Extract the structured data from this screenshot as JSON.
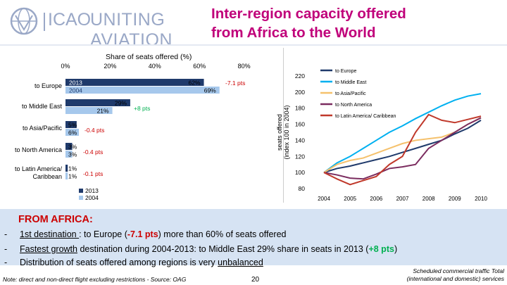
{
  "header": {
    "logo_icao": "ICAO",
    "logo_tagline": "UNITING AVIATION",
    "title": "Inter-region capacity offered from Africa to the World"
  },
  "colors": {
    "title": "#c0007a",
    "bar_2013": "#1f3a6b",
    "bar_2004": "#a6c8ec",
    "to_europe": "#1f3a6b",
    "to_middle_east": "#00b0f0",
    "to_asia_pacific": "#f5c16c",
    "to_north_america": "#7b2c5f",
    "to_latin_america": "#c0392b",
    "positive": "#00b050",
    "negative": "#cc0000"
  },
  "chart_data": [
    {
      "type": "bar",
      "title": "Share of seats offered (%)",
      "orientation": "horizontal",
      "x_ticks": [
        "0%",
        "20%",
        "40%",
        "60%",
        "80%"
      ],
      "xlim": [
        0,
        80
      ],
      "categories": [
        "to Europe",
        "to Middle East",
        "to Asia/Pacific",
        "to North America",
        "to Latin America/ Caribbean"
      ],
      "series": [
        {
          "name": "2013",
          "values": [
            62,
            29,
            5,
            3,
            1
          ],
          "labels": [
            "62%",
            "29%",
            "5%",
            "3%",
            "1%"
          ]
        },
        {
          "name": "2004",
          "values": [
            69,
            21,
            6,
            3,
            1
          ],
          "labels": [
            "69%",
            "21%",
            "6%",
            "3%",
            "1%"
          ]
        }
      ],
      "in_bar_labels": {
        "2013": "2013",
        "2004": "2004"
      },
      "annotations": [
        "-7.1 pts",
        "+8 pts",
        "-0.4 pts",
        "-0.4 pts",
        "-0.1 pts"
      ],
      "legend": "bottom-left"
    },
    {
      "type": "line",
      "ylabel": "seats offered (index 100 in 2004)",
      "x": [
        "2004",
        "2005",
        "2006",
        "2007",
        "2008",
        "2009",
        "2010"
      ],
      "x_values": [
        2004,
        2004.5,
        2005,
        2005.5,
        2006,
        2006.5,
        2007,
        2007.5,
        2008,
        2008.5,
        2009,
        2009.5,
        2010
      ],
      "y_ticks": [
        "80",
        "100",
        "120",
        "140",
        "160",
        "180",
        "200",
        "220"
      ],
      "ylim": [
        80,
        220
      ],
      "series": [
        {
          "name": "to Europe",
          "values": [
            100,
            105,
            108,
            112,
            116,
            120,
            125,
            130,
            135,
            140,
            148,
            155,
            165
          ]
        },
        {
          "name": "to Middle East",
          "values": [
            100,
            112,
            120,
            130,
            140,
            150,
            158,
            167,
            175,
            183,
            190,
            195,
            198
          ]
        },
        {
          "name": "to Asia/Pacific",
          "values": [
            100,
            110,
            115,
            118,
            124,
            130,
            136,
            140,
            142,
            144,
            150,
            160,
            168
          ]
        },
        {
          "name": "to North America",
          "values": [
            100,
            97,
            93,
            92,
            98,
            105,
            107,
            110,
            130,
            140,
            150,
            160,
            168
          ]
        },
        {
          "name": "to Latin America/ Caribbean",
          "values": [
            100,
            92,
            85,
            90,
            95,
            110,
            120,
            150,
            172,
            165,
            162,
            166,
            170
          ]
        }
      ],
      "legend": "top-right"
    }
  ],
  "summary": {
    "heading": "FROM AFRICA:",
    "bullets": [
      {
        "dash": "-",
        "lead": "1st destination ",
        "rest": ": to Europe (",
        "highlight": "-7.1 pts",
        "end": ")  more than 60% of seats offered"
      },
      {
        "dash": "-",
        "lead": "Fastest growth",
        "rest": " destination during 2004-2013: to Middle East   29% share in seats in 2013 (",
        "highlight": "+8 pts",
        "end": ")"
      },
      {
        "dash": "-",
        "lead": "Distribution of seats offered among regions is very ",
        "rest": "unbalanced",
        "highlight": "",
        "end": ""
      }
    ]
  },
  "footer": {
    "note": "Note: direct and non-direct flight excluding restrictions - Source: OAG",
    "page_number": "20",
    "source_note": "Scheduled commercial traffic Total (international and domestic) services"
  }
}
